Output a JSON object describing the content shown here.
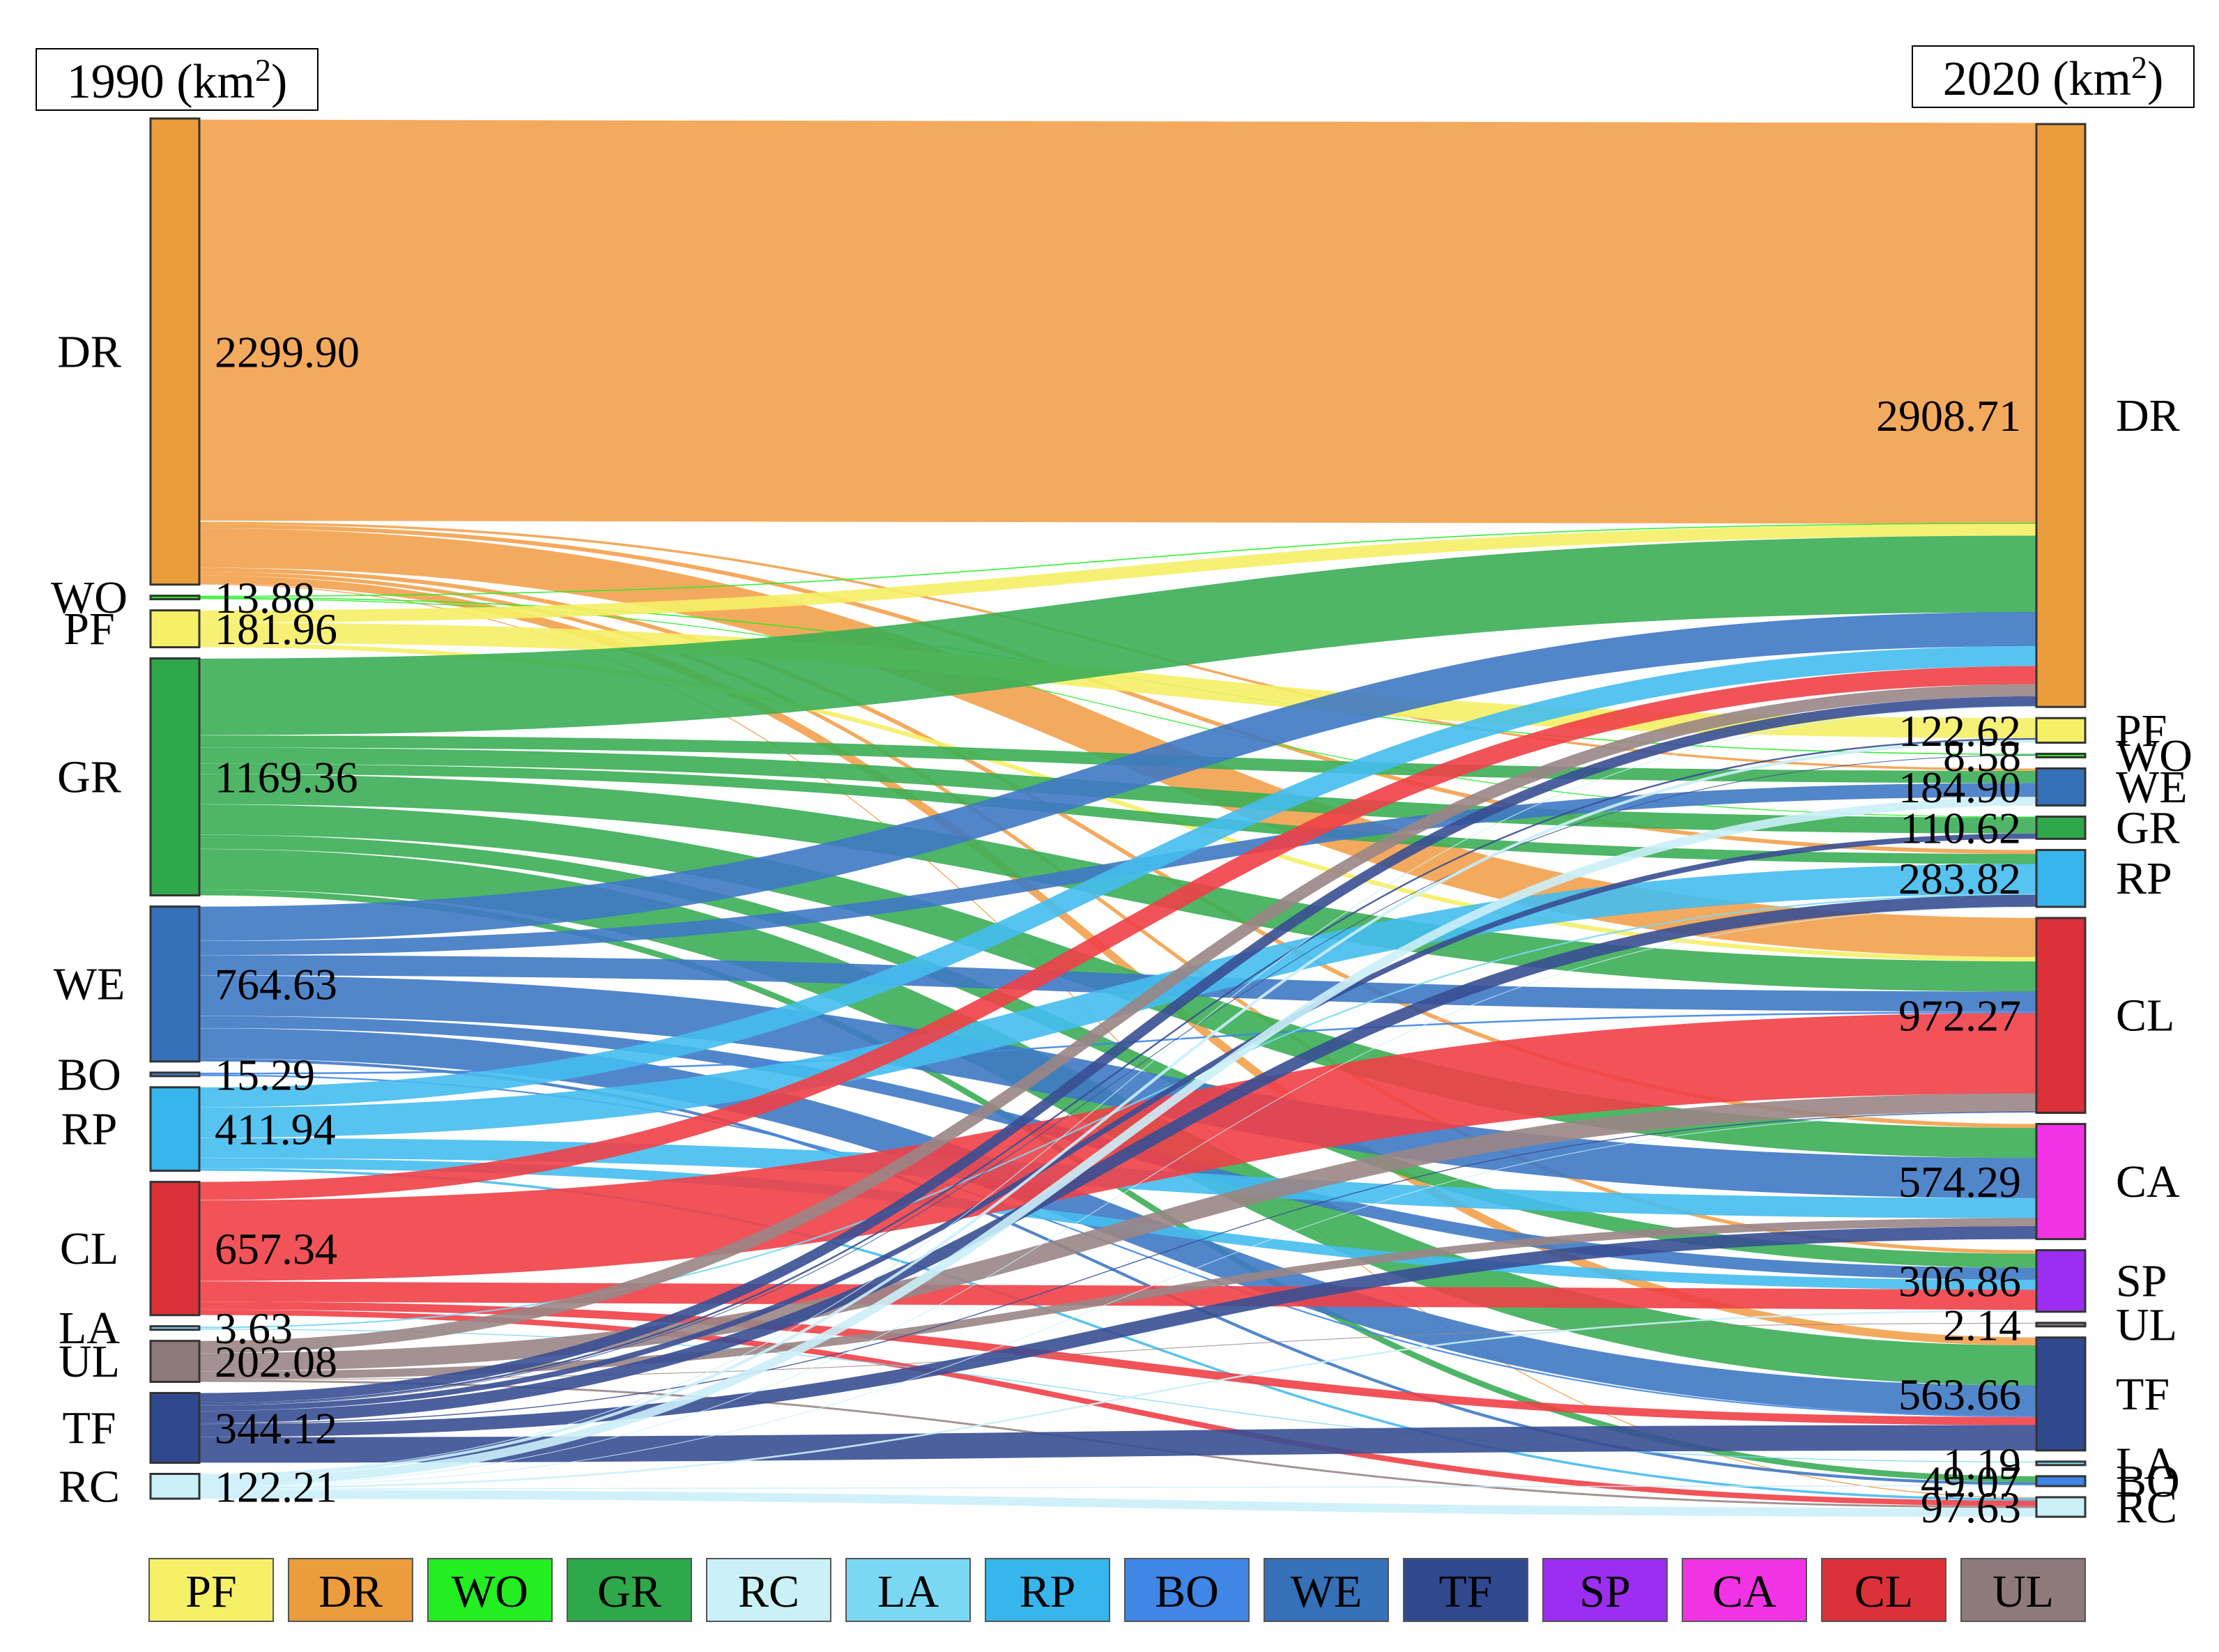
{
  "chart_data": {
    "type": "sankey",
    "left_title": {
      "year": "1990",
      "unit": "(km",
      "sup": "2",
      "close": ")"
    },
    "right_title": {
      "year": "2020",
      "unit": "(km",
      "sup": "2",
      "close": ")"
    },
    "colors": {
      "PF": "#f5f066",
      "DR": "#eb9c3c",
      "WO": "#22ee22",
      "GR": "#2ea84a",
      "RC": "#c9f1f7",
      "LA": "#7ad8f5",
      "RP": "#36b6ec",
      "BO": "#3f86e6",
      "WE": "#3570b8",
      "TF": "#30488e",
      "SP": "#9b2ef0",
      "CA": "#f233e5",
      "CL": "#dc3138",
      "UL": "#8f7a7a"
    },
    "flow_colors": {
      "PF": "#f5f066",
      "DR": "#f3a14d",
      "WO": "#22ee22",
      "GR": "#3bae55",
      "RC": "#cbeffa",
      "LA": "#7ad8f5",
      "RP": "#45bdee",
      "BO": "#3f86e6",
      "WE": "#3f79c4",
      "TF": "#394f93",
      "SP": "#9b2ef0",
      "CA": "#f233e5",
      "CL": "#ef4047",
      "UL": "#9a8585"
    },
    "nodes_1990": [
      {
        "name": "DR",
        "value": 2299.9,
        "label": "2299.90"
      },
      {
        "name": "WO",
        "value": 13.88,
        "label": "13.88"
      },
      {
        "name": "PF",
        "value": 181.96,
        "label": "181.96"
      },
      {
        "name": "GR",
        "value": 1169.36,
        "label": "1169.36"
      },
      {
        "name": "WE",
        "value": 764.63,
        "label": "764.63"
      },
      {
        "name": "BO",
        "value": 15.29,
        "label": "15.29"
      },
      {
        "name": "RP",
        "value": 411.94,
        "label": "411.94"
      },
      {
        "name": "CL",
        "value": 657.34,
        "label": "657.34"
      },
      {
        "name": "LA",
        "value": 3.63,
        "label": "3.63"
      },
      {
        "name": "UL",
        "value": 202.08,
        "label": "202.08"
      },
      {
        "name": "TF",
        "value": 344.12,
        "label": "344.12"
      },
      {
        "name": "RC",
        "value": 122.21,
        "label": "122.21"
      }
    ],
    "nodes_2020": [
      {
        "name": "DR",
        "value": 2908.71,
        "label": "2908.71"
      },
      {
        "name": "PF",
        "value": 122.62,
        "label": "122.62"
      },
      {
        "name": "WO",
        "value": 8.58,
        "label": "8.58"
      },
      {
        "name": "WE",
        "value": 184.9,
        "label": "184.90"
      },
      {
        "name": "GR",
        "value": 110.62,
        "label": "110.62"
      },
      {
        "name": "RP",
        "value": 283.82,
        "label": "283.82"
      },
      {
        "name": "CL",
        "value": 972.27,
        "label": "972.27"
      },
      {
        "name": "CA",
        "value": 574.29,
        "label": "574.29"
      },
      {
        "name": "SP",
        "value": 306.86,
        "label": "306.86"
      },
      {
        "name": "UL",
        "value": 2.14,
        "label": "2.14"
      },
      {
        "name": "TF",
        "value": 563.66,
        "label": "563.66"
      },
      {
        "name": "LA",
        "value": 1.19,
        "label": "1.19"
      },
      {
        "name": "BO",
        "value": 49.07,
        "label": "49.07"
      },
      {
        "name": "RC",
        "value": 97.63,
        "label": "97.63"
      }
    ],
    "flows": [
      {
        "from": "DR",
        "to": "DR",
        "value": 1990
      },
      {
        "from": "DR",
        "to": "WE",
        "value": 12
      },
      {
        "from": "DR",
        "to": "RP",
        "value": 20
      },
      {
        "from": "DR",
        "to": "CL",
        "value": 195
      },
      {
        "from": "DR",
        "to": "CA",
        "value": 20
      },
      {
        "from": "DR",
        "to": "SP",
        "value": 18
      },
      {
        "from": "DR",
        "to": "TF",
        "value": 40
      },
      {
        "from": "DR",
        "to": "RC",
        "value": 4.9
      },
      {
        "from": "WO",
        "to": "DR",
        "value": 5
      },
      {
        "from": "WO",
        "to": "WO",
        "value": 5
      },
      {
        "from": "WO",
        "to": "GR",
        "value": 3.88
      },
      {
        "from": "PF",
        "to": "DR",
        "value": 60
      },
      {
        "from": "PF",
        "to": "PF",
        "value": 100
      },
      {
        "from": "PF",
        "to": "CL",
        "value": 21.96
      },
      {
        "from": "GR",
        "to": "DR",
        "value": 380
      },
      {
        "from": "GR",
        "to": "WE",
        "value": 60
      },
      {
        "from": "GR",
        "to": "GR",
        "value": 80
      },
      {
        "from": "GR",
        "to": "RP",
        "value": 50
      },
      {
        "from": "GR",
        "to": "CL",
        "value": 150
      },
      {
        "from": "GR",
        "to": "CA",
        "value": 150
      },
      {
        "from": "GR",
        "to": "SP",
        "value": 70
      },
      {
        "from": "GR",
        "to": "TF",
        "value": 200
      },
      {
        "from": "GR",
        "to": "BO",
        "value": 29.36
      },
      {
        "from": "WE",
        "to": "DR",
        "value": 170
      },
      {
        "from": "WE",
        "to": "WE",
        "value": 70
      },
      {
        "from": "WE",
        "to": "CL",
        "value": 100
      },
      {
        "from": "WE",
        "to": "CA",
        "value": 200
      },
      {
        "from": "WE",
        "to": "SP",
        "value": 60
      },
      {
        "from": "WE",
        "to": "TF",
        "value": 150
      },
      {
        "from": "WE",
        "to": "BO",
        "value": 14.63
      },
      {
        "from": "BO",
        "to": "CL",
        "value": 8
      },
      {
        "from": "BO",
        "to": "TF",
        "value": 7.29
      },
      {
        "from": "RP",
        "to": "DR",
        "value": 100
      },
      {
        "from": "RP",
        "to": "RP",
        "value": 150
      },
      {
        "from": "RP",
        "to": "CA",
        "value": 100
      },
      {
        "from": "RP",
        "to": "SP",
        "value": 50
      },
      {
        "from": "RP",
        "to": "RC",
        "value": 11.94
      },
      {
        "from": "CL",
        "to": "DR",
        "value": 90
      },
      {
        "from": "CL",
        "to": "CL",
        "value": 400
      },
      {
        "from": "CL",
        "to": "SP",
        "value": 100
      },
      {
        "from": "CL",
        "to": "TF",
        "value": 40
      },
      {
        "from": "CL",
        "to": "RC",
        "value": 27.34
      },
      {
        "from": "LA",
        "to": "LA",
        "value": 1.19
      },
      {
        "from": "LA",
        "to": "RP",
        "value": 2.44
      },
      {
        "from": "UL",
        "to": "DR",
        "value": 60
      },
      {
        "from": "UL",
        "to": "CL",
        "value": 90
      },
      {
        "from": "UL",
        "to": "CA",
        "value": 40
      },
      {
        "from": "UL",
        "to": "UL",
        "value": 2.14
      },
      {
        "from": "UL",
        "to": "RC",
        "value": 9.94
      },
      {
        "from": "TF",
        "to": "DR",
        "value": 50
      },
      {
        "from": "TF",
        "to": "WO",
        "value": 3.58
      },
      {
        "from": "TF",
        "to": "TF",
        "value": 126.37
      },
      {
        "from": "TF",
        "to": "GR",
        "value": 26.74
      },
      {
        "from": "TF",
        "to": "RP",
        "value": 60
      },
      {
        "from": "TF",
        "to": "CA",
        "value": 64.29
      },
      {
        "from": "TF",
        "to": "PF",
        "value": 8.14
      },
      {
        "from": "TF",
        "to": "CL",
        "value": 5
      },
      {
        "from": "RC",
        "to": "PF",
        "value": 14.48
      },
      {
        "from": "RC",
        "to": "DR",
        "value": 3.71
      },
      {
        "from": "RC",
        "to": "CL",
        "value": 2.31
      },
      {
        "from": "RC",
        "to": "SP",
        "value": 8.86
      },
      {
        "from": "RC",
        "to": "BO",
        "value": 5.08
      },
      {
        "from": "RC",
        "to": "RC",
        "value": 43.51
      },
      {
        "from": "RC",
        "to": "RP",
        "value": 1.38
      },
      {
        "from": "RC",
        "to": "LA",
        "value": 0
      },
      {
        "from": "RC",
        "to": "UL",
        "value": 0
      },
      {
        "from": "RC",
        "to": "WE",
        "value": 42.9
      }
    ],
    "legend": [
      "PF",
      "DR",
      "WO",
      "GR",
      "RC",
      "LA",
      "RP",
      "BO",
      "WE",
      "TF",
      "SP",
      "CA",
      "CL",
      "UL"
    ]
  }
}
